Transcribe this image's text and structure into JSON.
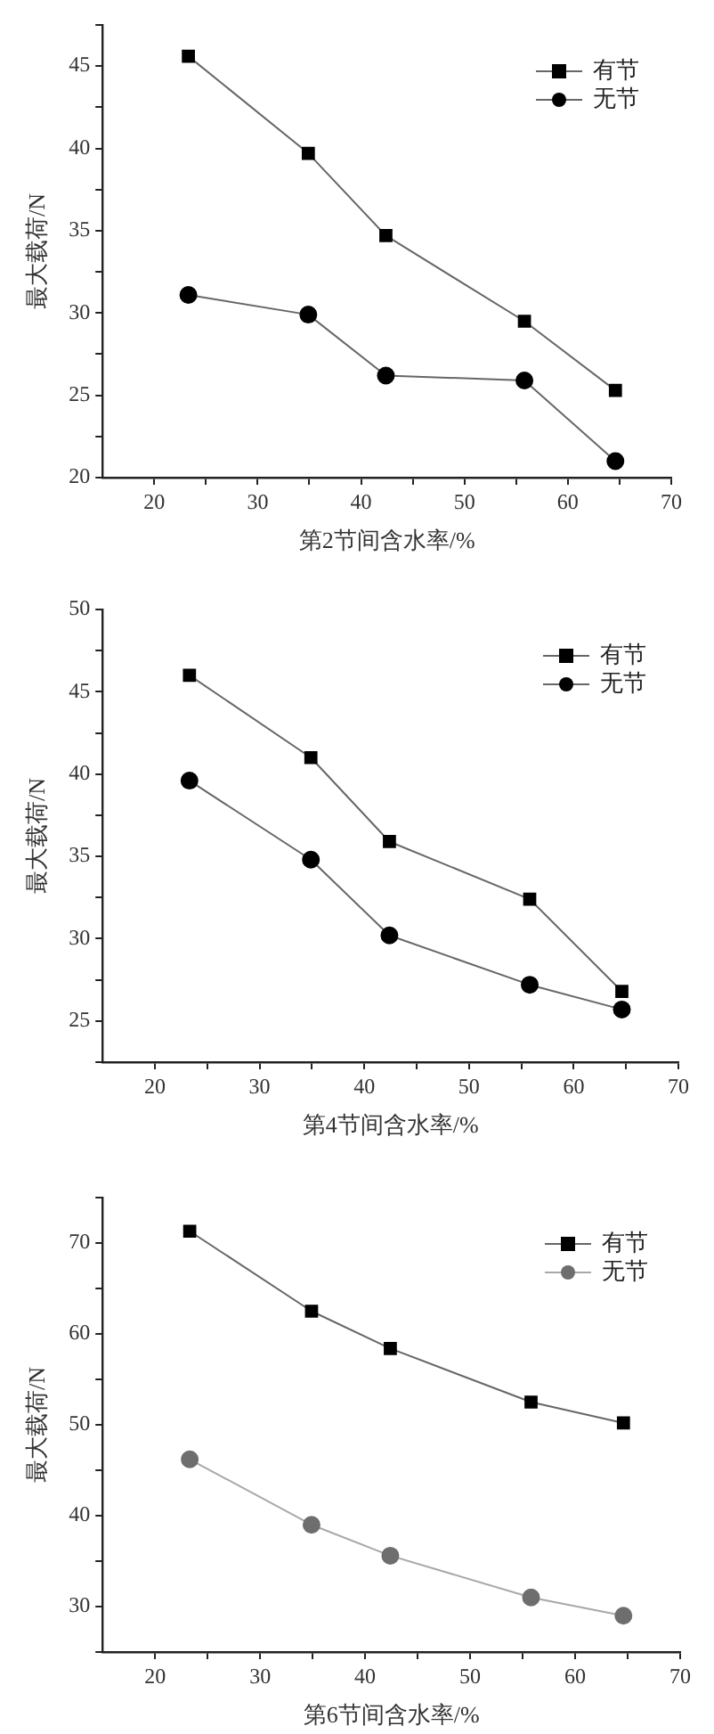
{
  "chart_data": [
    {
      "type": "line",
      "xlabel": "第2节间含水率/%",
      "ylabel": "最大载荷/N",
      "x": [
        23.3,
        34.9,
        42.4,
        55.8,
        64.6
      ],
      "series": [
        {
          "name": "有节",
          "color": "#000000",
          "marker": "square",
          "values": [
            45.6,
            39.7,
            34.7,
            29.5,
            25.3
          ]
        },
        {
          "name": "无节",
          "color": "#000000",
          "marker": "circle",
          "values": [
            31.1,
            29.9,
            26.2,
            25.9,
            21.0
          ]
        }
      ],
      "xlim": [
        15,
        70
      ],
      "xticks": [
        20,
        {
          "value": 25,
          "label": null
        },
        30,
        {
          "value": 35,
          "label": null
        },
        40,
        {
          "value": 45,
          "label": null
        },
        50,
        {
          "value": 55,
          "label": null
        },
        60,
        {
          "value": 65,
          "label": null
        },
        70
      ],
      "ylim": [
        20,
        47.5
      ],
      "yticks": [
        20,
        {
          "value": 22.5,
          "label": null
        },
        25,
        {
          "value": 27.5,
          "label": null
        },
        30,
        {
          "value": 32.5,
          "label": null
        },
        35,
        {
          "value": 37.5,
          "label": null
        },
        40,
        {
          "value": 42.5,
          "label": null
        },
        45,
        {
          "value": 47.5,
          "label": null
        }
      ],
      "grid": false,
      "legend": "top right"
    },
    {
      "type": "line",
      "xlabel": "第4节间含水率/%",
      "ylabel": "最大载荷/N",
      "x": [
        23.3,
        34.9,
        42.4,
        55.8,
        64.6
      ],
      "series": [
        {
          "name": "有节",
          "color": "#000000",
          "marker": "square",
          "values": [
            46.0,
            41.0,
            35.9,
            32.4,
            26.8
          ]
        },
        {
          "name": "无节",
          "color": "#000000",
          "marker": "circle",
          "values": [
            39.6,
            34.8,
            30.2,
            27.2,
            25.7
          ]
        }
      ],
      "xlim": [
        15,
        70
      ],
      "xticks": [
        20,
        {
          "value": 25,
          "label": null
        },
        30,
        {
          "value": 35,
          "label": null
        },
        40,
        {
          "value": 45,
          "label": null
        },
        50,
        {
          "value": 55,
          "label": null
        },
        60,
        {
          "value": 65,
          "label": null
        },
        70
      ],
      "ylim": [
        22.5,
        50
      ],
      "yticks": [
        {
          "value": 22.5,
          "label": null
        },
        25,
        {
          "value": 27.5,
          "label": null
        },
        30,
        {
          "value": 32.5,
          "label": null
        },
        35,
        {
          "value": 37.5,
          "label": null
        },
        40,
        {
          "value": 42.5,
          "label": null
        },
        45,
        {
          "value": 47.5,
          "label": null
        },
        50
      ],
      "grid": false,
      "legend": "top right"
    },
    {
      "type": "line",
      "xlabel": "第6节间含水率/%",
      "ylabel": "最大载荷/N",
      "x": [
        23.3,
        34.9,
        42.4,
        55.8,
        64.6
      ],
      "series": [
        {
          "name": "有节",
          "color": "#000000",
          "marker": "square",
          "values": [
            71.3,
            62.5,
            58.4,
            52.5,
            50.2
          ]
        },
        {
          "name": "无节",
          "color": "#6e6e6e",
          "marker": "circle",
          "values": [
            46.2,
            39.0,
            35.6,
            31.0,
            29.0
          ]
        }
      ],
      "xlim": [
        15,
        70
      ],
      "xticks": [
        20,
        {
          "value": 25,
          "label": null
        },
        30,
        {
          "value": 35,
          "label": null
        },
        40,
        {
          "value": 45,
          "label": null
        },
        50,
        {
          "value": 55,
          "label": null
        },
        60,
        {
          "value": 65,
          "label": null
        },
        70
      ],
      "ylim": [
        25,
        75
      ],
      "yticks": [
        {
          "value": 25,
          "label": null
        },
        30,
        {
          "value": 35,
          "label": null
        },
        40,
        {
          "value": 45,
          "label": null
        },
        50,
        {
          "value": 55,
          "label": null
        },
        60,
        {
          "value": 65,
          "label": null
        },
        70,
        {
          "value": 75,
          "label": null
        }
      ],
      "grid": false,
      "legend": "top right"
    }
  ]
}
